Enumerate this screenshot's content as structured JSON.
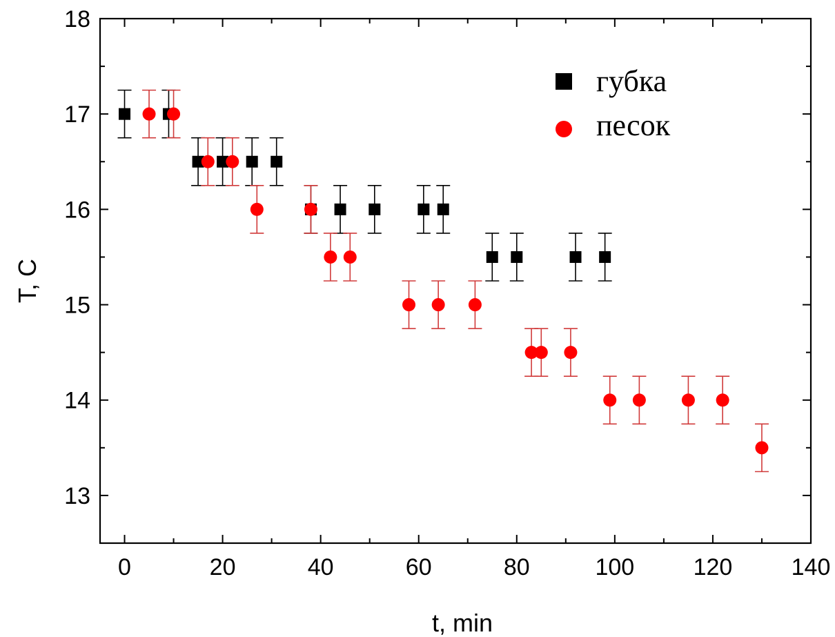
{
  "chart_data": {
    "type": "scatter",
    "title": "",
    "xlabel": "t, min",
    "ylabel": "T, C",
    "xlim": [
      -5,
      140
    ],
    "ylim": [
      12.5,
      18
    ],
    "xticks": [
      0,
      20,
      40,
      60,
      80,
      100,
      120,
      140
    ],
    "yticks": [
      13,
      14,
      15,
      16,
      17,
      18
    ],
    "grid": false,
    "legend_position": "top-right",
    "series": [
      {
        "name": "губка",
        "marker": "square",
        "color": "#000000",
        "error_color": "#000000",
        "error": 0.25,
        "points": [
          {
            "x": 0,
            "y": 17
          },
          {
            "x": 9,
            "y": 17
          },
          {
            "x": 15,
            "y": 16.5
          },
          {
            "x": 20,
            "y": 16.5
          },
          {
            "x": 26,
            "y": 16.5
          },
          {
            "x": 31,
            "y": 16.5
          },
          {
            "x": 38,
            "y": 16
          },
          {
            "x": 44,
            "y": 16
          },
          {
            "x": 51,
            "y": 16
          },
          {
            "x": 61,
            "y": 16
          },
          {
            "x": 65,
            "y": 16
          },
          {
            "x": 75,
            "y": 15.5
          },
          {
            "x": 80,
            "y": 15.5
          },
          {
            "x": 92,
            "y": 15.5
          },
          {
            "x": 98,
            "y": 15.5
          }
        ]
      },
      {
        "name": "песок",
        "marker": "circle",
        "color": "#ff0000",
        "error_color": "#d03a3a",
        "error": 0.25,
        "points": [
          {
            "x": 5,
            "y": 17
          },
          {
            "x": 10,
            "y": 17
          },
          {
            "x": 17,
            "y": 16.5
          },
          {
            "x": 22,
            "y": 16.5
          },
          {
            "x": 27,
            "y": 16
          },
          {
            "x": 38,
            "y": 16
          },
          {
            "x": 42,
            "y": 15.5
          },
          {
            "x": 46,
            "y": 15.5
          },
          {
            "x": 58,
            "y": 15
          },
          {
            "x": 64,
            "y": 15
          },
          {
            "x": 71.5,
            "y": 15
          },
          {
            "x": 83,
            "y": 14.5
          },
          {
            "x": 85,
            "y": 14.5
          },
          {
            "x": 91,
            "y": 14.5
          },
          {
            "x": 99,
            "y": 14
          },
          {
            "x": 105,
            "y": 14
          },
          {
            "x": 115,
            "y": 14
          },
          {
            "x": 122,
            "y": 14
          },
          {
            "x": 130,
            "y": 13.5
          }
        ]
      }
    ]
  }
}
